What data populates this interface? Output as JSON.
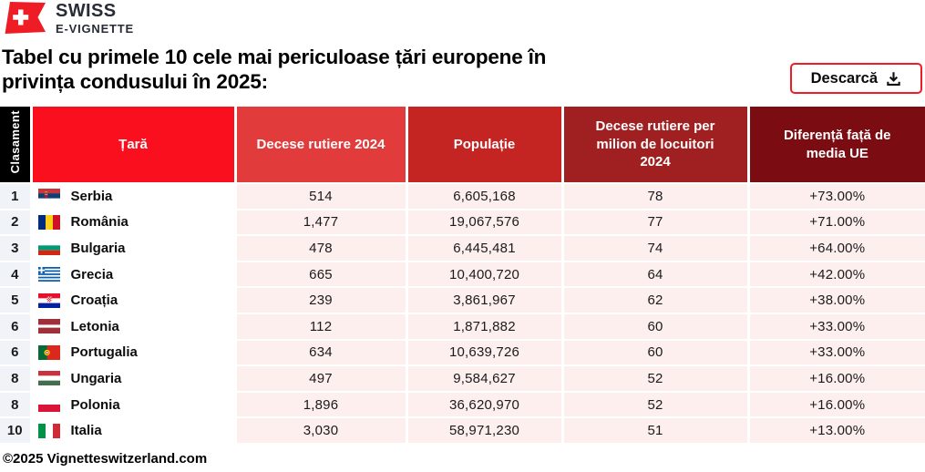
{
  "brand": {
    "line1": "SWISS",
    "line2": "E-VIGNETTE"
  },
  "colors": {
    "accent": "#EE1C25",
    "logo_text": "#272C35",
    "rank_cell_bg": "#F0F4F8",
    "country_cell_bg": "#FFFFFF",
    "data_cell_bg": "#FCEFEE"
  },
  "title": "Tabel cu primele 10 cele mai periculoase țări europene în\nprivința condusului în 2025:",
  "download_button": {
    "label": "Descarcă",
    "icon": "download-icon"
  },
  "table": {
    "columns": [
      {
        "key": "rank",
        "label": "Clasament",
        "bg": "#000000"
      },
      {
        "key": "country",
        "label": "Țară",
        "bg": "#F90F1D"
      },
      {
        "key": "deaths",
        "label": "Decese rutiere 2024",
        "bg": "#E23B3B"
      },
      {
        "key": "population",
        "label": "Populație",
        "bg": "#C42523"
      },
      {
        "key": "per_million",
        "label": "Decese rutiere per milion de locuitori 2024",
        "bg": "#A02021"
      },
      {
        "key": "diff",
        "label": "Diferență față de media UE",
        "bg": "#7B0D12"
      }
    ],
    "rows": [
      {
        "rank": "1",
        "flag": "serbia",
        "country": "Serbia",
        "deaths": "514",
        "population": "6,605,168",
        "per_million": "78",
        "diff": "+73.00%"
      },
      {
        "rank": "2",
        "flag": "romania",
        "country": "România",
        "deaths": "1,477",
        "population": "19,067,576",
        "per_million": "77",
        "diff": "+71.00%"
      },
      {
        "rank": "3",
        "flag": "bulgaria",
        "country": "Bulgaria",
        "deaths": "478",
        "population": "6,445,481",
        "per_million": "74",
        "diff": "+64.00%"
      },
      {
        "rank": "4",
        "flag": "greece",
        "country": "Grecia",
        "deaths": "665",
        "population": "10,400,720",
        "per_million": "64",
        "diff": "+42.00%"
      },
      {
        "rank": "5",
        "flag": "croatia",
        "country": "Croația",
        "deaths": "239",
        "population": "3,861,967",
        "per_million": "62",
        "diff": "+38.00%"
      },
      {
        "rank": "6",
        "flag": "latvia",
        "country": "Letonia",
        "deaths": "112",
        "population": "1,871,882",
        "per_million": "60",
        "diff": "+33.00%"
      },
      {
        "rank": "6",
        "flag": "portugal",
        "country": "Portugalia",
        "deaths": "634",
        "population": "10,639,726",
        "per_million": "60",
        "diff": "+33.00%"
      },
      {
        "rank": "8",
        "flag": "hungary",
        "country": "Ungaria",
        "deaths": "497",
        "population": "9,584,627",
        "per_million": "52",
        "diff": "+16.00%"
      },
      {
        "rank": "8",
        "flag": "poland",
        "country": "Polonia",
        "deaths": "1,896",
        "population": "36,620,970",
        "per_million": "52",
        "diff": "+16.00%"
      },
      {
        "rank": "10",
        "flag": "italy",
        "country": "Italia",
        "deaths": "3,030",
        "population": "58,971,230",
        "per_million": "51",
        "diff": "+13.00%"
      }
    ]
  },
  "footer": {
    "copyright": "©2025 Vignetteswitzerland.com"
  }
}
